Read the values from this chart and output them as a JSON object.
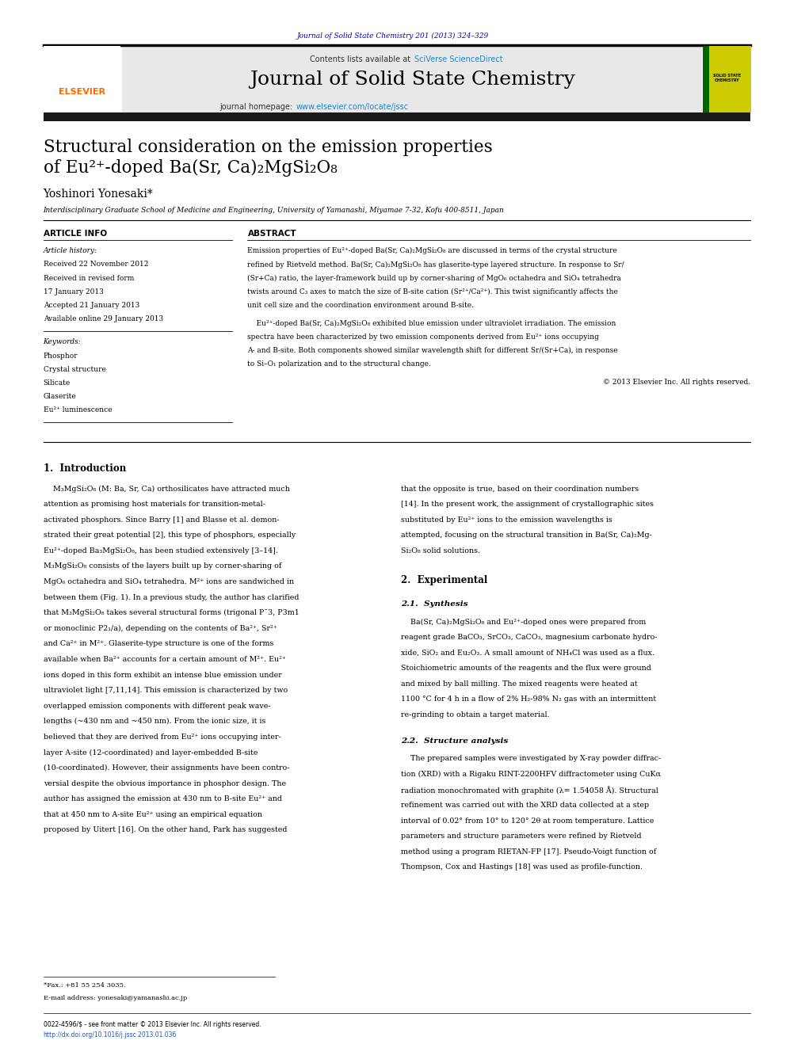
{
  "page_width": 9.92,
  "page_height": 13.23,
  "bg_color": "#ffffff",
  "journal_ref": "Journal of Solid State Chemistry 201 (2013) 324–329",
  "journal_ref_color": "#0000cc",
  "header_bg": "#e8e8e8",
  "sciverse_color": "#2288cc",
  "journal_name": "Journal of Solid State Chemistry",
  "journal_url_color": "#2288cc",
  "title_line1": "Structural consideration on the emission properties",
  "title_line2": "of Eu²⁺-doped Ba(Sr, Ca)₂MgSi₂O₈",
  "author": "Yoshinori Yonesaki*",
  "affiliation": "Interdisciplinary Graduate School of Medicine and Engineering, University of Yamanashi, Miyamae 7-32, Kofu 400-8511, Japan",
  "article_info_label": "ARTICLE INFO",
  "abstract_label": "ABSTRACT",
  "article_history_label": "Article history:",
  "received1": "Received 22 November 2012",
  "revised": "Received in revised form",
  "revised_date": "17 January 2013",
  "accepted": "Accepted 21 January 2013",
  "available": "Available online 29 January 2013",
  "keywords_label": "Keywords:",
  "keywords": [
    "Phosphor",
    "Crystal structure",
    "Silicate",
    "Glaserite",
    "Eu²⁺ luminescence"
  ],
  "abs1_lines": [
    "Emission properties of Eu²⁺-doped Ba(Sr, Ca)₂MgSi₂O₈ are discussed in terms of the crystal structure",
    "refined by Rietveld method. Ba(Sr, Ca)₂MgSi₂O₈ has glaserite-type layered structure. In response to Sr/",
    "(Sr+Ca) ratio, the layer-framework build up by corner-sharing of MgO₆ octahedra and SiO₄ tetrahedra",
    "twists around C₃ axes to match the size of B-site cation (Sr²⁺/Ca²⁺). This twist significantly affects the",
    "unit cell size and the coordination environment around B-site."
  ],
  "abs2_lines": [
    "    Eu²⁺-doped Ba(Sr, Ca)₂MgSi₂O₈ exhibited blue emission under ultraviolet irradiation. The emission",
    "spectra have been characterized by two emission components derived from Eu²⁺ ions occupying",
    "A- and B-site. Both components showed similar wavelength shift for different Sr/(Sr+Ca), in response",
    "to Si–O₁ polarization and to the structural change."
  ],
  "copyright": "© 2013 Elsevier Inc. All rights reserved.",
  "section1_title": "1.  Introduction",
  "intro_col1_lines": [
    "    M₃MgSi₂O₈ (M: Ba, Sr, Ca) orthosilicates have attracted much",
    "attention as promising host materials for transition-metal-",
    "activated phosphors. Since Barry [1] and Blasse et al. demon-",
    "strated their great potential [2], this type of phosphors, especially",
    "Eu²⁺-doped Ba₃MgSi₂O₈, has been studied extensively [3–14].",
    "M₃MgSi₂O₈ consists of the layers built up by corner-sharing of",
    "MgO₆ octahedra and SiO₄ tetrahedra. M²⁺ ions are sandwiched in",
    "between them (Fig. 1). In a previous study, the author has clarified",
    "that M₃MgSi₂O₈ takes several structural forms (trigonal P¯3, P3m1",
    "or monoclinic P2₁/a), depending on the contents of Ba²⁺, Sr²⁺",
    "and Ca²⁺ in M²⁺. Glaserite-type structure is one of the forms",
    "available when Ba²⁺ accounts for a certain amount of M²⁺. Eu²⁺",
    "ions doped in this form exhibit an intense blue emission under",
    "ultraviolet light [7,11,14]. This emission is characterized by two",
    "overlapped emission components with different peak wave-",
    "lengths (~430 nm and ~450 nm). From the ionic size, it is",
    "believed that they are derived from Eu²⁺ ions occupying inter-",
    "layer A-site (12-coordinated) and layer-embedded B-site",
    "(10-coordinated). However, their assignments have been contro-",
    "versial despite the obvious importance in phosphor design. The",
    "author has assigned the emission at 430 nm to B-site Eu²⁺ and",
    "that at 450 nm to A-site Eu²⁺ using an empirical equation",
    "proposed by Uitert [16]. On the other hand, Park has suggested"
  ],
  "intro_col2_lines": [
    "that the opposite is true, based on their coordination numbers",
    "[14]. In the present work, the assignment of crystallographic sites",
    "substituted by Eu²⁺ ions to the emission wavelengths is",
    "attempted, focusing on the structural transition in Ba(Sr, Ca)₂Mg-",
    "Si₂O₈ solid solutions."
  ],
  "section2_title": "2.  Experimental",
  "section21_title": "2.1.  Synthesis",
  "synth_lines": [
    "    Ba(Sr, Ca)₂MgSi₂O₈ and Eu²⁺-doped ones were prepared from",
    "reagent grade BaCO₃, SrCO₃, CaCO₃, magnesium carbonate hydro-",
    "xide, SiO₂ and Eu₂O₃. A small amount of NH₄Cl was used as a flux.",
    "Stoichiometric amounts of the reagents and the flux were ground",
    "and mixed by ball milling. The mixed reagents were heated at",
    "1100 °C for 4 h in a flow of 2% H₂-98% N₂ gas with an intermittent",
    "re-grinding to obtain a target material."
  ],
  "section22_title": "2.2.  Structure analysis",
  "struct_lines": [
    "    The prepared samples were investigated by X-ray powder diffrac-",
    "tion (XRD) with a Rigaku RINT-2200HFV diffractometer using CuKα",
    "radiation monochromated with graphite (λ= 1.54058 Å). Structural",
    "refinement was carried out with the XRD data collected at a step",
    "interval of 0.02° from 10° to 120° 2θ at room temperature. Lattice",
    "parameters and structure parameters were refined by Rietveld",
    "method using a program RIETAN-FP [17]. Pseudo-Voigt function of",
    "Thompson, Cox and Hastings [18] was used as profile-function."
  ],
  "footnote1": "*Fax.: +81 55 254 3035.",
  "footnote2": "E-mail address: yonesaki@yamanashi.ac.jp",
  "footer1": "0022-4596/$ - see front matter © 2013 Elsevier Inc. All rights reserved.",
  "footer2": "http://dx.doi.org/10.1016/j.jssc.2013.01.036",
  "elsevier_color": "#ff6600",
  "dark_bar_color": "#1a1a1a",
  "link_color": "#2255aa"
}
